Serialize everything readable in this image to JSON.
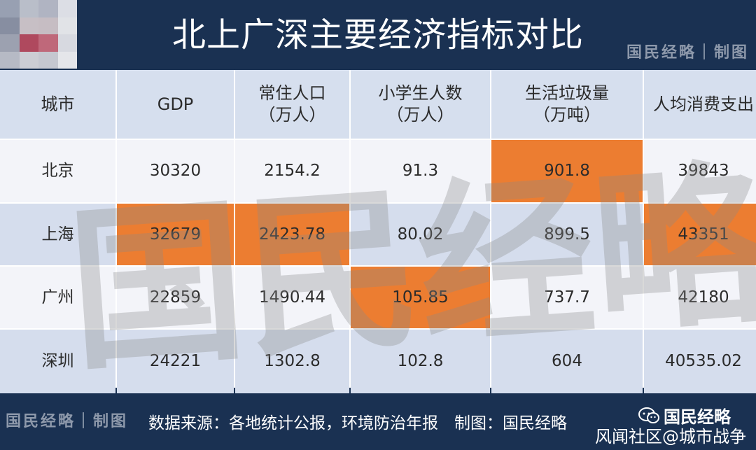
{
  "header": {
    "title": "北上广深主要经济指标对比",
    "brand": "国民经略｜制图",
    "bg_color": "#1a3152"
  },
  "table": {
    "columns": [
      "城市",
      "GDP",
      "常住人口\n（万人）",
      "小学生人数\n（万人）",
      "生活垃圾量\n（万吨）",
      "人均消费支出"
    ],
    "rows": [
      {
        "city": "北京",
        "gdp": "30320",
        "population": "2154.2",
        "pupils": "91.3",
        "garbage": "901.8",
        "consumption": "39843"
      },
      {
        "city": "上海",
        "gdp": "32679",
        "population": "2423.78",
        "pupils": "80.02",
        "garbage": "899.5",
        "consumption": "43351"
      },
      {
        "city": "广州",
        "gdp": "22859",
        "population": "1490.44",
        "pupils": "105.85",
        "garbage": "737.7",
        "consumption": "42180"
      },
      {
        "city": "深圳",
        "gdp": "24221",
        "population": "1302.8",
        "pupils": "102.8",
        "garbage": "604",
        "consumption": "40535.02"
      }
    ],
    "highlight_color": "#ec7d31",
    "header_bg": "#d6dfee",
    "row_bg_light": "#f3f4f9",
    "row_bg_dark": "#d5dded"
  },
  "watermark": {
    "text": "国民经略"
  },
  "footer": {
    "brand": "国民经略｜制图",
    "source": "数据来源：各地统计公报，环境防治年报　制图：国民经略",
    "social_account": "国民经略",
    "social_icon": "wechat-icon",
    "social_site": "风闻社区@城市战争"
  }
}
